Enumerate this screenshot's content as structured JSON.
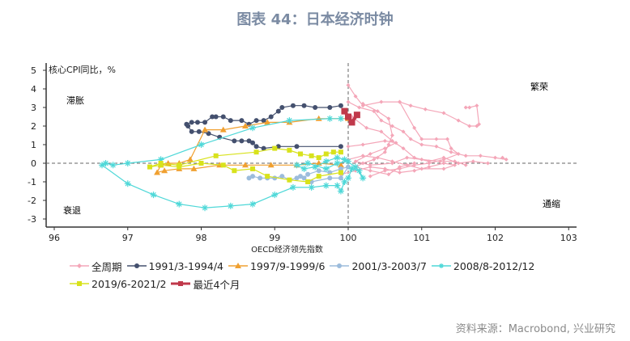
{
  "title": "图表 44：日本经济时钟",
  "source": "资料来源：Macrobond, 兴业研究",
  "chart_data": {
    "type": "line",
    "xlabel": "OECD经济领先指数",
    "ylabel": "核心CPI同比，%",
    "xlim": [
      95.9,
      103.1
    ],
    "ylim": [
      -3.4,
      5.4
    ],
    "xticks": [
      96,
      97,
      98,
      99,
      100,
      101,
      102,
      103
    ],
    "yticks": [
      5,
      4,
      3,
      2,
      1,
      0,
      -1,
      -2,
      -3
    ],
    "reference_lines": {
      "x": 100,
      "y": 0
    },
    "quadrant_labels": {
      "top_left": "滞胀",
      "top_right": "繁荣",
      "bottom_left": "衰退",
      "bottom_right": "通缩"
    },
    "series": [
      {
        "name": "全周期",
        "color": "#f4a6b8",
        "marker": "diamond",
        "segments": [
          [
            [
              100.0,
              4.2
            ],
            [
              100.1,
              3.6
            ],
            [
              100.2,
              3.1
            ],
            [
              100.45,
              3.3
            ],
            [
              100.7,
              3.3
            ],
            [
              100.85,
              3.1
            ],
            [
              101.05,
              2.9
            ],
            [
              101.3,
              2.7
            ],
            [
              101.5,
              2.3
            ],
            [
              101.65,
              2.0
            ],
            [
              101.75,
              2.0
            ],
            [
              101.78,
              2.1
            ],
            [
              101.75,
              3.1
            ],
            [
              101.65,
              3.0
            ],
            [
              101.6,
              3.0
            ]
          ],
          [
            [
              100.0,
              3.3
            ],
            [
              100.15,
              3.0
            ],
            [
              100.35,
              2.8
            ],
            [
              100.45,
              2.3
            ],
            [
              100.6,
              2.0
            ],
            [
              100.75,
              1.7
            ],
            [
              100.85,
              1.3
            ],
            [
              101.0,
              1.0
            ],
            [
              101.2,
              0.9
            ],
            [
              101.4,
              0.6
            ],
            [
              101.6,
              0.4
            ],
            [
              101.8,
              0.4
            ],
            [
              102.0,
              0.3
            ],
            [
              102.15,
              0.2
            ],
            [
              102.1,
              0.3
            ]
          ],
          [
            [
              100.05,
              2.5
            ],
            [
              100.25,
              1.9
            ],
            [
              100.45,
              1.7
            ],
            [
              100.6,
              1.2
            ],
            [
              100.75,
              0.8
            ],
            [
              100.9,
              0.3
            ],
            [
              101.1,
              0.1
            ],
            [
              101.3,
              0.3
            ],
            [
              101.5,
              0.0
            ],
            [
              101.7,
              0.1
            ],
            [
              101.9,
              0.0
            ]
          ],
          [
            [
              100.7,
              3.3
            ],
            [
              100.9,
              1.9
            ],
            [
              101.0,
              1.3
            ],
            [
              101.2,
              1.3
            ],
            [
              101.35,
              1.3
            ],
            [
              101.4,
              0.8
            ],
            [
              101.5,
              0.5
            ],
            [
              101.3,
              0.2
            ],
            [
              101.1,
              0.0
            ],
            [
              100.9,
              -0.1
            ],
            [
              100.7,
              -0.3
            ],
            [
              100.5,
              -0.4
            ],
            [
              100.3,
              -0.7
            ]
          ],
          [
            [
              100.2,
              3.2
            ],
            [
              100.4,
              2.8
            ],
            [
              100.55,
              2.4
            ],
            [
              100.6,
              1.5
            ],
            [
              100.55,
              1.0
            ],
            [
              100.5,
              0.6
            ],
            [
              100.35,
              0.2
            ],
            [
              100.2,
              0.0
            ],
            [
              100.1,
              -0.2
            ],
            [
              100.3,
              -0.4
            ],
            [
              100.55,
              -0.6
            ],
            [
              100.7,
              -0.2
            ],
            [
              100.9,
              0.0
            ]
          ],
          [
            [
              100.0,
              0.9
            ],
            [
              100.2,
              1.0
            ],
            [
              100.5,
              1.2
            ],
            [
              100.65,
              1.1
            ],
            [
              100.5,
              0.8
            ],
            [
              100.3,
              0.5
            ],
            [
              100.1,
              0.1
            ],
            [
              100.3,
              -0.1
            ],
            [
              100.6,
              0.0
            ],
            [
              100.8,
              0.3
            ],
            [
              101.0,
              0.2
            ],
            [
              101.25,
              0.1
            ],
            [
              101.45,
              0.1
            ],
            [
              101.6,
              -0.1
            ]
          ],
          [
            [
              99.9,
              -0.6
            ],
            [
              100.1,
              -0.4
            ],
            [
              100.3,
              -0.2
            ],
            [
              100.5,
              -0.3
            ],
            [
              100.7,
              -0.5
            ],
            [
              100.9,
              -0.4
            ],
            [
              101.1,
              -0.2
            ],
            [
              101.3,
              0.0
            ],
            [
              101.45,
              -0.1
            ],
            [
              101.3,
              -0.3
            ],
            [
              101.0,
              -0.3
            ],
            [
              100.8,
              -0.1
            ],
            [
              100.6,
              0.1
            ],
            [
              100.4,
              0.3
            ],
            [
              100.2,
              0.4
            ],
            [
              100.0,
              0.2
            ]
          ]
        ]
      },
      {
        "name": "1991/3-1994/4",
        "color": "#44506e",
        "marker": "circle",
        "points": [
          [
            99.9,
            3.1
          ],
          [
            99.75,
            3.0
          ],
          [
            99.55,
            3.0
          ],
          [
            99.4,
            3.1
          ],
          [
            99.25,
            3.1
          ],
          [
            99.1,
            3.0
          ],
          [
            99.05,
            2.8
          ],
          [
            98.95,
            2.5
          ],
          [
            98.85,
            2.3
          ],
          [
            98.75,
            2.3
          ],
          [
            98.65,
            2.1
          ],
          [
            98.55,
            2.3
          ],
          [
            98.4,
            2.3
          ],
          [
            98.3,
            2.5
          ],
          [
            98.2,
            2.5
          ],
          [
            98.15,
            2.5
          ],
          [
            98.05,
            2.2
          ],
          [
            97.95,
            2.2
          ],
          [
            97.87,
            2.2
          ],
          [
            97.8,
            2.1
          ],
          [
            97.82,
            2.0
          ],
          [
            97.87,
            1.7
          ],
          [
            97.97,
            1.7
          ],
          [
            98.1,
            1.6
          ],
          [
            98.25,
            1.4
          ],
          [
            98.45,
            1.2
          ],
          [
            98.55,
            1.2
          ],
          [
            98.65,
            1.2
          ],
          [
            98.7,
            1.1
          ],
          [
            98.75,
            0.9
          ],
          [
            98.85,
            0.8
          ],
          [
            99.05,
            0.9
          ],
          [
            99.3,
            0.9
          ],
          [
            99.9,
            0.9
          ]
        ]
      },
      {
        "name": "1997/9-1999/6",
        "color": "#f0a030",
        "marker": "triangle",
        "points": [
          [
            100.0,
            2.4
          ],
          [
            99.6,
            2.4
          ],
          [
            99.2,
            2.2
          ],
          [
            98.9,
            2.2
          ],
          [
            98.6,
            2.0
          ],
          [
            98.3,
            1.8
          ],
          [
            98.05,
            1.8
          ],
          [
            97.85,
            0.2
          ],
          [
            97.7,
            0.0
          ],
          [
            97.55,
            0.0
          ],
          [
            97.45,
            -0.1
          ],
          [
            97.4,
            -0.5
          ],
          [
            97.5,
            -0.4
          ],
          [
            97.7,
            -0.3
          ],
          [
            97.9,
            -0.3
          ],
          [
            98.25,
            -0.1
          ],
          [
            98.6,
            -0.1
          ],
          [
            98.95,
            -0.1
          ],
          [
            99.3,
            -0.1
          ],
          [
            99.6,
            0.0
          ],
          [
            99.9,
            -0.1
          ]
        ]
      },
      {
        "name": "2001/3-2003/7",
        "color": "#9cbcdc",
        "marker": "circle",
        "points": [
          [
            98.65,
            -0.8
          ],
          [
            98.7,
            -0.7
          ],
          [
            98.8,
            -0.8
          ],
          [
            98.9,
            -0.8
          ],
          [
            99.0,
            -0.8
          ],
          [
            99.1,
            -0.7
          ],
          [
            99.2,
            -0.9
          ],
          [
            99.3,
            -0.8
          ],
          [
            99.35,
            -0.7
          ],
          [
            99.4,
            -0.8
          ],
          [
            99.45,
            -0.6
          ],
          [
            99.6,
            -0.4
          ],
          [
            99.75,
            -0.5
          ],
          [
            99.9,
            -0.3
          ],
          [
            100.0,
            -0.2
          ],
          [
            99.9,
            -0.8
          ],
          [
            99.75,
            -0.8
          ],
          [
            99.5,
            -1.0
          ]
        ]
      },
      {
        "name": "2008/8-2012/12",
        "color": "#4fd8d8",
        "marker": "asterisk",
        "points": [
          [
            99.9,
            2.4
          ],
          [
            99.75,
            2.4
          ],
          [
            99.2,
            2.3
          ],
          [
            98.7,
            1.9
          ],
          [
            98.0,
            1.0
          ],
          [
            97.45,
            0.2
          ],
          [
            97.0,
            0.0
          ],
          [
            96.8,
            -0.1
          ],
          [
            96.7,
            0.0
          ],
          [
            96.65,
            -0.1
          ],
          [
            97.0,
            -1.1
          ],
          [
            97.35,
            -1.7
          ],
          [
            97.7,
            -2.2
          ],
          [
            98.05,
            -2.4
          ],
          [
            98.4,
            -2.3
          ],
          [
            98.7,
            -2.2
          ],
          [
            99.0,
            -1.7
          ],
          [
            99.25,
            -1.3
          ],
          [
            99.5,
            -1.3
          ],
          [
            99.7,
            -1.2
          ],
          [
            99.85,
            -1.2
          ],
          [
            99.9,
            -1.5
          ],
          [
            99.95,
            -1.0
          ],
          [
            100.0,
            -0.8
          ],
          [
            100.05,
            -0.3
          ],
          [
            100.15,
            -0.4
          ],
          [
            100.2,
            -0.8
          ],
          [
            100.1,
            -0.2
          ],
          [
            99.95,
            0.2
          ],
          [
            99.85,
            0.3
          ],
          [
            99.7,
            0.1
          ],
          [
            99.55,
            -0.2
          ],
          [
            99.4,
            -0.3
          ],
          [
            99.3,
            -0.1
          ],
          [
            99.45,
            0.0
          ],
          [
            99.7,
            -0.3
          ],
          [
            99.85,
            0.0
          ],
          [
            100.0,
            0.1
          ]
        ]
      },
      {
        "name": "2019/6-2021/2",
        "color": "#d8e21c",
        "marker": "square",
        "points": [
          [
            99.9,
            0.6
          ],
          [
            99.8,
            0.6
          ],
          [
            99.7,
            0.5
          ],
          [
            99.6,
            0.3
          ],
          [
            99.5,
            0.4
          ],
          [
            99.35,
            0.5
          ],
          [
            99.2,
            0.7
          ],
          [
            99.0,
            0.8
          ],
          [
            98.75,
            0.6
          ],
          [
            98.2,
            0.4
          ],
          [
            97.7,
            -0.1
          ],
          [
            97.45,
            0.0
          ],
          [
            97.3,
            -0.2
          ],
          [
            97.45,
            -0.1
          ],
          [
            97.7,
            -0.2
          ],
          [
            98.0,
            0.0
          ],
          [
            98.3,
            -0.1
          ],
          [
            98.45,
            -0.4
          ],
          [
            98.7,
            -0.3
          ],
          [
            98.9,
            -0.7
          ],
          [
            99.2,
            -0.9
          ],
          [
            99.45,
            -1.0
          ],
          [
            99.6,
            -0.7
          ],
          [
            99.9,
            -0.5
          ]
        ]
      },
      {
        "name": "最近4个月",
        "color": "#c0394b",
        "marker": "square",
        "points": [
          [
            99.95,
            2.8
          ],
          [
            100.0,
            2.5
          ],
          [
            100.05,
            2.2
          ],
          [
            100.12,
            2.6
          ]
        ]
      }
    ]
  }
}
